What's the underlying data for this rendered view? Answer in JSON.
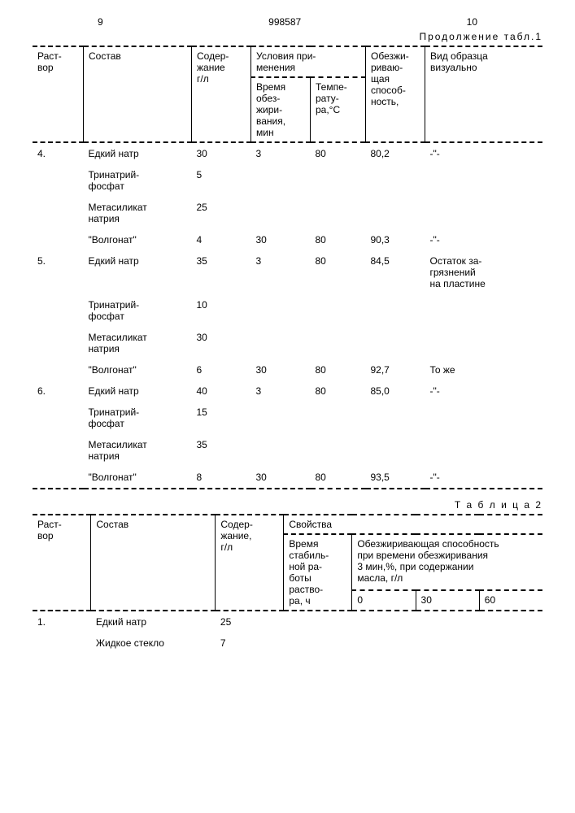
{
  "header": {
    "left_page": "9",
    "doc_number": "998587",
    "right_page": "10",
    "continuation": "Продолжение табл.1"
  },
  "table1": {
    "headers": {
      "rastvor": "Раст-\nвор",
      "sostav": "Состав",
      "soder": "Содер-\nжание\nг/л",
      "usloviya": "Условия при-\nменения",
      "time": "Время\nобез-\nжири-\nвания,\nмин",
      "temp": "Темпе-\nрату-\nра,°С",
      "obez": "Обезжи-\nриваю-\nщая\nспособ-\nность,",
      "vid": "Вид образца\nвизуально"
    },
    "rows": [
      {
        "n": "4.",
        "sostav": "Едкий натр",
        "soder": "30",
        "time": "3",
        "temp": "80",
        "obez": "80,2",
        "vid": "-\"-"
      },
      {
        "n": "",
        "sostav": "Тринатрий-\nфосфат",
        "soder": "5",
        "time": "",
        "temp": "",
        "obez": "",
        "vid": ""
      },
      {
        "n": "",
        "sostav": "Метасиликат\nнатрия",
        "soder": "25",
        "time": "",
        "temp": "",
        "obez": "",
        "vid": ""
      },
      {
        "n": "",
        "sostav": "\"Волгонат\"",
        "soder": "4",
        "time": "30",
        "temp": "80",
        "obez": "90,3",
        "vid": "-\"-"
      },
      {
        "n": "5.",
        "sostav": "Едкий натр",
        "soder": "35",
        "time": "3",
        "temp": "80",
        "obez": "84,5",
        "vid": "Остаток за-\nгрязнений\nна пластине"
      },
      {
        "n": "",
        "sostav": "Тринатрий-\nфосфат",
        "soder": "10",
        "time": "",
        "temp": "",
        "obez": "",
        "vid": ""
      },
      {
        "n": "",
        "sostav": "Метасиликат\nнатрия",
        "soder": "30",
        "time": "",
        "temp": "",
        "obez": "",
        "vid": ""
      },
      {
        "n": "",
        "sostav": "\"Волгонат\"",
        "soder": "6",
        "time": "30",
        "temp": "80",
        "obez": "92,7",
        "vid": "То же"
      },
      {
        "n": "6.",
        "sostav": "Едкий натр",
        "soder": "40",
        "time": "3",
        "temp": "80",
        "obez": "85,0",
        "vid": "-\"-"
      },
      {
        "n": "",
        "sostav": "Тринатрий-\nфосфат",
        "soder": "15",
        "time": "",
        "temp": "",
        "obez": "",
        "vid": ""
      },
      {
        "n": "",
        "sostav": "Метасиликат\nнатрия",
        "soder": "35",
        "time": "",
        "temp": "",
        "obez": "",
        "vid": ""
      },
      {
        "n": "",
        "sostav": "\"Волгонат\"",
        "soder": "8",
        "time": "30",
        "temp": "80",
        "obez": "93,5",
        "vid": "-\"-"
      }
    ]
  },
  "table2": {
    "caption": "Т а б л и ц а 2",
    "headers": {
      "rastvor": "Раст-\nвор",
      "sostav": "Состав",
      "soder": "Содер-\nжание,\nг/л",
      "svoystva": "Свойства",
      "time": "Время\nстабиль-\nной ра-\nботы\nраство-\nра, ч",
      "obez": "Обезжиривающая способность\nпри времени обезжиривания\n3 мин,%, при содержании\nмасла, г/л",
      "c0": "0",
      "c30": "30",
      "c60": "60"
    },
    "rows": [
      {
        "n": "1.",
        "sostav": "Едкий натр",
        "soder": "25"
      },
      {
        "n": "",
        "sostav": "Жидкое стекло",
        "soder": "7"
      }
    ]
  }
}
